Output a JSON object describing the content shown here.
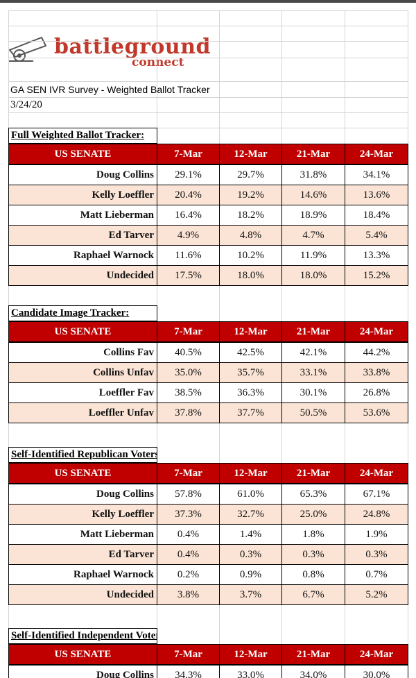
{
  "logo": {
    "name": "battleground",
    "sub": "connect"
  },
  "header": {
    "title": "GA SEN IVR Survey - Weighted Ballot Tracker",
    "date": "3/24/20"
  },
  "tables": [
    {
      "title": "Full Weighted Ballot Tracker:",
      "columns": [
        "US SENATE",
        "7-Mar",
        "12-Mar",
        "21-Mar",
        "24-Mar"
      ],
      "rows": [
        [
          "Doug Collins",
          "29.1%",
          "29.7%",
          "31.8%",
          "34.1%"
        ],
        [
          "Kelly Loeffler",
          "20.4%",
          "19.2%",
          "14.6%",
          "13.6%"
        ],
        [
          "Matt Lieberman",
          "16.4%",
          "18.2%",
          "18.9%",
          "18.4%"
        ],
        [
          "Ed Tarver",
          "4.9%",
          "4.8%",
          "4.7%",
          "5.4%"
        ],
        [
          "Raphael Warnock",
          "11.6%",
          "10.2%",
          "11.9%",
          "13.3%"
        ],
        [
          "Undecided",
          "17.5%",
          "18.0%",
          "18.0%",
          "15.2%"
        ]
      ]
    },
    {
      "title": "Candidate Image Tracker:",
      "columns": [
        "US SENATE",
        "7-Mar",
        "12-Mar",
        "21-Mar",
        "24-Mar"
      ],
      "rows": [
        [
          "Collins Fav",
          "40.5%",
          "42.5%",
          "42.1%",
          "44.2%"
        ],
        [
          "Collins Unfav",
          "35.0%",
          "35.7%",
          "33.1%",
          "33.8%"
        ],
        [
          "Loeffler Fav",
          "38.5%",
          "36.3%",
          "30.1%",
          "26.8%"
        ],
        [
          "Loeffler Unfav",
          "37.8%",
          "37.7%",
          "50.5%",
          "53.6%"
        ]
      ]
    },
    {
      "title": "Self-Identified Republican Voters:",
      "columns": [
        "US SENATE",
        "7-Mar",
        "12-Mar",
        "21-Mar",
        "24-Mar"
      ],
      "rows": [
        [
          "Doug Collins",
          "57.8%",
          "61.0%",
          "65.3%",
          "67.1%"
        ],
        [
          "Kelly Loeffler",
          "37.3%",
          "32.7%",
          "25.0%",
          "24.8%"
        ],
        [
          "Matt Lieberman",
          "0.4%",
          "1.4%",
          "1.8%",
          "1.9%"
        ],
        [
          "Ed Tarver",
          "0.4%",
          "0.3%",
          "0.3%",
          "0.3%"
        ],
        [
          "Raphael Warnock",
          "0.2%",
          "0.9%",
          "0.8%",
          "0.7%"
        ],
        [
          "Undecided",
          "3.8%",
          "3.7%",
          "6.7%",
          "5.2%"
        ]
      ]
    },
    {
      "title": "Self-Identified Independent Voters:",
      "columns": [
        "US SENATE",
        "7-Mar",
        "12-Mar",
        "21-Mar",
        "24-Mar"
      ],
      "rows": [
        [
          "Doug Collins",
          "34.3%",
          "33.0%",
          "34.0%",
          "30.0%"
        ]
      ]
    }
  ]
}
